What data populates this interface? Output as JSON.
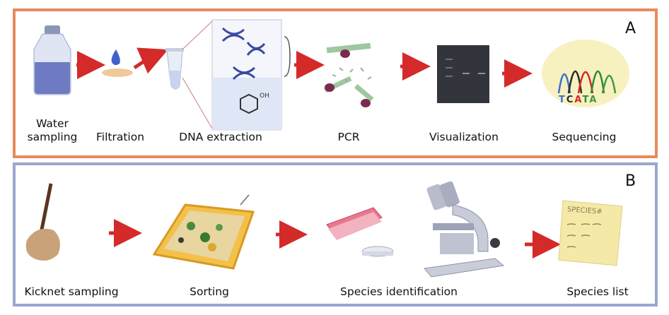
{
  "panel_a": {
    "letter": "A",
    "steps": [
      {
        "line1": "Water",
        "line2": "sampling"
      },
      {
        "label": "Filtration"
      },
      {
        "label": "DNA extraction"
      },
      {
        "label": "PCR"
      },
      {
        "label": "Visualization"
      },
      {
        "label": "Sequencing"
      }
    ],
    "sequence_letters": [
      "T",
      "C",
      "A",
      "T",
      "A"
    ]
  },
  "panel_b": {
    "letter": "B",
    "steps": [
      {
        "label": "Kicknet sampling"
      },
      {
        "label": "Sorting"
      },
      {
        "label": "Species identification"
      },
      {
        "label": "Species list"
      }
    ],
    "species_list_header": "SPECIES#"
  },
  "colors": {
    "panel_a_border": "#e88a5c",
    "panel_b_border": "#9aa7cf",
    "arrow": "#d42a2a"
  }
}
